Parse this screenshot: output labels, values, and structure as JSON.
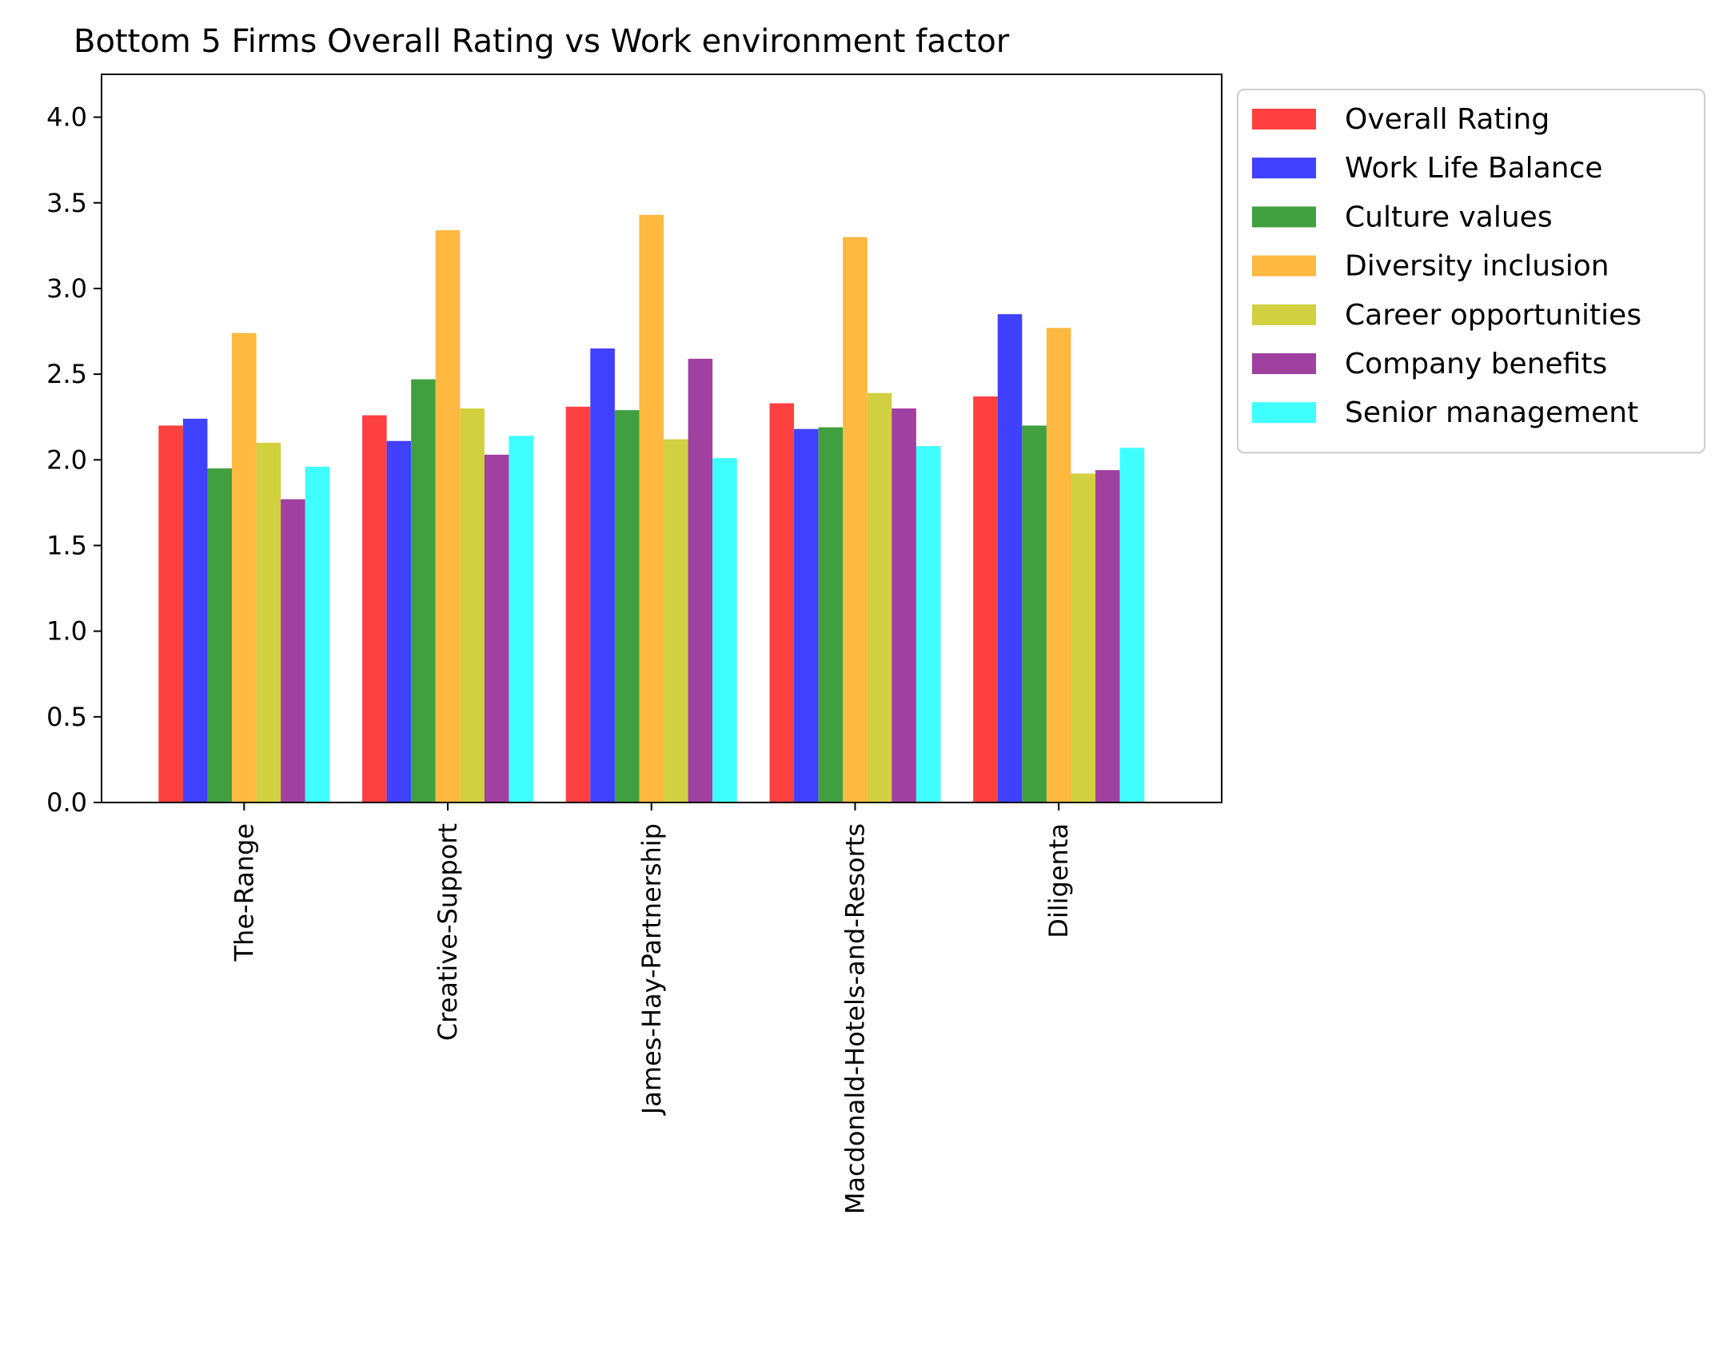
{
  "chart_data": {
    "type": "bar",
    "title": "Bottom 5 Firms Overall Rating vs Work environment factor",
    "xlabel": "",
    "ylabel": "",
    "ylim": [
      0,
      4.25
    ],
    "yticks": [
      "0.0",
      "0.5",
      "1.0",
      "1.5",
      "2.0",
      "2.5",
      "3.0",
      "3.5",
      "4.0"
    ],
    "categories": [
      "The-Range",
      "Creative-Support",
      "James-Hay-Partnership",
      "Macdonald-Hotels-and-Resorts",
      "Diligenta"
    ],
    "legend_position": "outside-top-right",
    "grid": false,
    "series": [
      {
        "name": "Overall Rating",
        "color": "#ff4040",
        "values": [
          2.2,
          2.26,
          2.31,
          2.33,
          2.37
        ]
      },
      {
        "name": "Work Life Balance",
        "color": "#4040ff",
        "values": [
          2.24,
          2.11,
          2.65,
          2.18,
          2.85
        ]
      },
      {
        "name": "Culture values",
        "color": "#40a040",
        "values": [
          1.95,
          2.47,
          2.29,
          2.19,
          2.2
        ]
      },
      {
        "name": "Diversity inclusion",
        "color": "#ffb840",
        "values": [
          2.74,
          3.34,
          3.43,
          3.3,
          2.77
        ]
      },
      {
        "name": "Career opportunities",
        "color": "#d0d040",
        "values": [
          2.1,
          2.3,
          2.12,
          2.39,
          1.92
        ]
      },
      {
        "name": "Company benefits",
        "color": "#a040a0",
        "values": [
          1.77,
          2.03,
          2.59,
          2.3,
          1.94
        ]
      },
      {
        "name": "Senior management",
        "color": "#40ffff",
        "values": [
          1.96,
          2.14,
          2.01,
          2.08,
          2.07
        ]
      }
    ]
  }
}
